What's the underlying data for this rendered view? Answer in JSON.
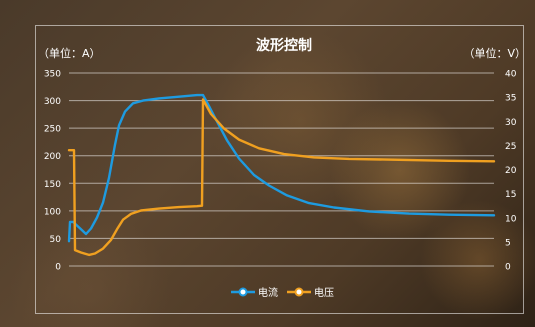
{
  "chart_data": {
    "type": "line",
    "title": "波形控制",
    "y_left_label": "（单位：A）",
    "y_right_label": "（单位：V）",
    "y_left_ticks": [
      "0",
      "50",
      "100",
      "150",
      "200",
      "250",
      "300",
      "350"
    ],
    "y_right_ticks": [
      "0",
      "5",
      "10",
      "15",
      "20",
      "25",
      "30",
      "35",
      "40"
    ],
    "y_left_range": [
      0,
      350
    ],
    "y_right_range": [
      0,
      40
    ],
    "grid": true,
    "legend_position": "bottom",
    "series": [
      {
        "name": "电流",
        "axis": "left",
        "color": "#1e9be0",
        "points": [
          [
            0,
            45
          ],
          [
            1,
            80
          ],
          [
            4,
            80
          ],
          [
            10,
            70
          ],
          [
            17,
            58
          ],
          [
            22,
            68
          ],
          [
            28,
            88
          ],
          [
            34,
            115
          ],
          [
            40,
            160
          ],
          [
            46,
            220
          ],
          [
            50,
            255
          ],
          [
            56,
            280
          ],
          [
            64,
            295
          ],
          [
            74,
            300
          ],
          [
            90,
            304
          ],
          [
            110,
            307
          ],
          [
            128,
            310
          ],
          [
            134,
            310
          ],
          [
            140,
            290
          ],
          [
            148,
            262
          ],
          [
            158,
            228
          ],
          [
            170,
            195
          ],
          [
            185,
            165
          ],
          [
            200,
            146
          ],
          [
            218,
            128
          ],
          [
            240,
            114
          ],
          [
            265,
            106
          ],
          [
            300,
            99
          ],
          [
            340,
            95
          ],
          [
            380,
            93
          ],
          [
            425,
            92
          ]
        ]
      },
      {
        "name": "电压",
        "axis": "right",
        "color": "#f0a020",
        "points": [
          [
            0,
            24
          ],
          [
            5,
            24
          ],
          [
            6,
            3.3
          ],
          [
            12,
            2.8
          ],
          [
            20,
            2.3
          ],
          [
            26,
            2.6
          ],
          [
            34,
            3.6
          ],
          [
            42,
            5.4
          ],
          [
            48,
            7.6
          ],
          [
            54,
            9.6
          ],
          [
            62,
            10.8
          ],
          [
            72,
            11.5
          ],
          [
            90,
            11.9
          ],
          [
            110,
            12.2
          ],
          [
            128,
            12.4
          ],
          [
            133,
            12.5
          ],
          [
            134,
            34.5
          ],
          [
            142,
            31.5
          ],
          [
            155,
            28.5
          ],
          [
            170,
            26.2
          ],
          [
            190,
            24.4
          ],
          [
            215,
            23.2
          ],
          [
            245,
            22.5
          ],
          [
            280,
            22.2
          ],
          [
            330,
            22
          ],
          [
            380,
            21.8
          ],
          [
            425,
            21.7
          ]
        ]
      }
    ]
  }
}
